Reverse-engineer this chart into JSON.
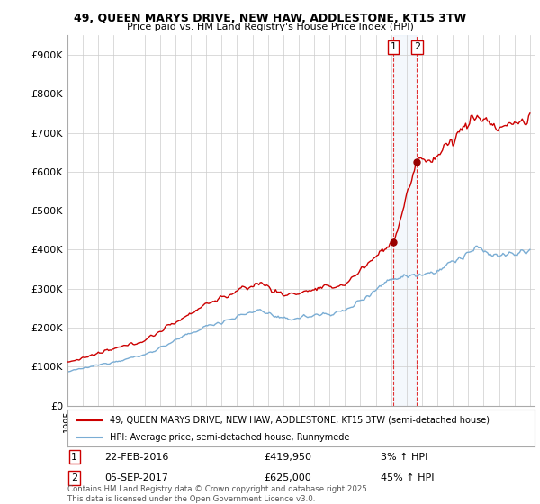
{
  "title": "49, QUEEN MARYS DRIVE, NEW HAW, ADDLESTONE, KT15 3TW",
  "subtitle": "Price paid vs. HM Land Registry's House Price Index (HPI)",
  "ylim": [
    0,
    950000
  ],
  "yticks": [
    0,
    100000,
    200000,
    300000,
    400000,
    500000,
    600000,
    700000,
    800000,
    900000
  ],
  "ytick_labels": [
    "£0",
    "£100K",
    "£200K",
    "£300K",
    "£400K",
    "£500K",
    "£600K",
    "£700K",
    "£800K",
    "£900K"
  ],
  "purchase1_year": 2016.13,
  "purchase2_year": 2017.67,
  "purchase1_price": 419950,
  "purchase2_price": 625000,
  "legend_line1": "49, QUEEN MARYS DRIVE, NEW HAW, ADDLESTONE, KT15 3TW (semi-detached house)",
  "legend_line2": "HPI: Average price, semi-detached house, Runnymede",
  "footnote": "Contains HM Land Registry data © Crown copyright and database right 2025.\nThis data is licensed under the Open Government Licence v3.0.",
  "line_color_red": "#cc0000",
  "line_color_blue": "#7aadd4",
  "dot_color": "#990000",
  "bg_color": "#ffffff",
  "grid_color": "#cccccc",
  "hpi_base": 87000,
  "prop_scale_factor": 1.05
}
